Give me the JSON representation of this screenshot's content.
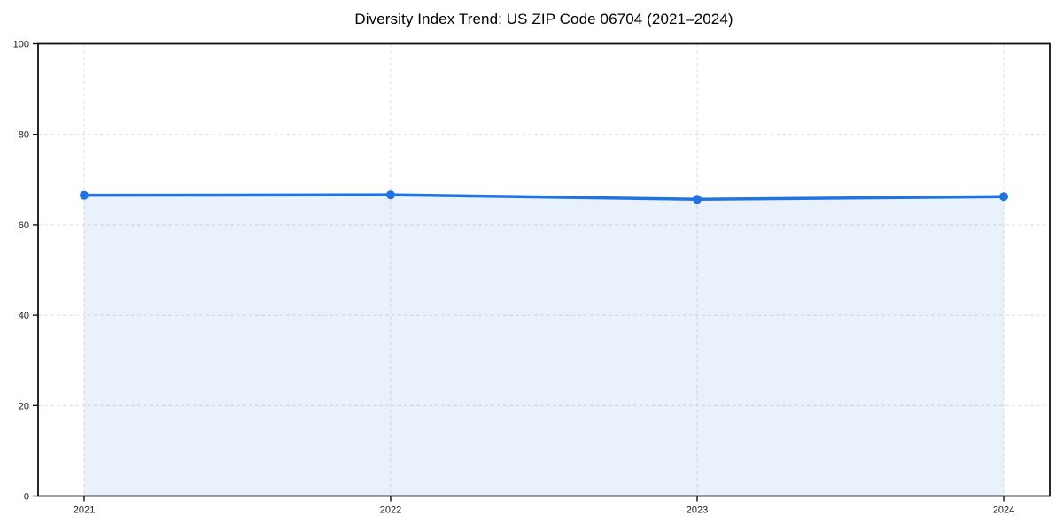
{
  "chart_data": {
    "type": "line",
    "title": "Diversity Index Trend: US ZIP Code 06704 (2021–2024)",
    "x": [
      "2021",
      "2022",
      "2023",
      "2024"
    ],
    "series": [
      {
        "name": "Diversity Index",
        "values": [
          66.5,
          66.6,
          65.6,
          66.2
        ],
        "color": "#2173e2",
        "fill_color": "rgba(33, 115, 226, 0.10)",
        "marker": "circle"
      }
    ],
    "xlabel": "",
    "ylabel": "",
    "ylim": [
      0,
      100
    ],
    "yticks": [
      0,
      20,
      40,
      60,
      80,
      100
    ],
    "grid": true,
    "grid_style": "dashed",
    "grid_color": "#dedede",
    "spine_color": "#111111",
    "tick_label_color": "#1a1a1a",
    "legend": false
  }
}
